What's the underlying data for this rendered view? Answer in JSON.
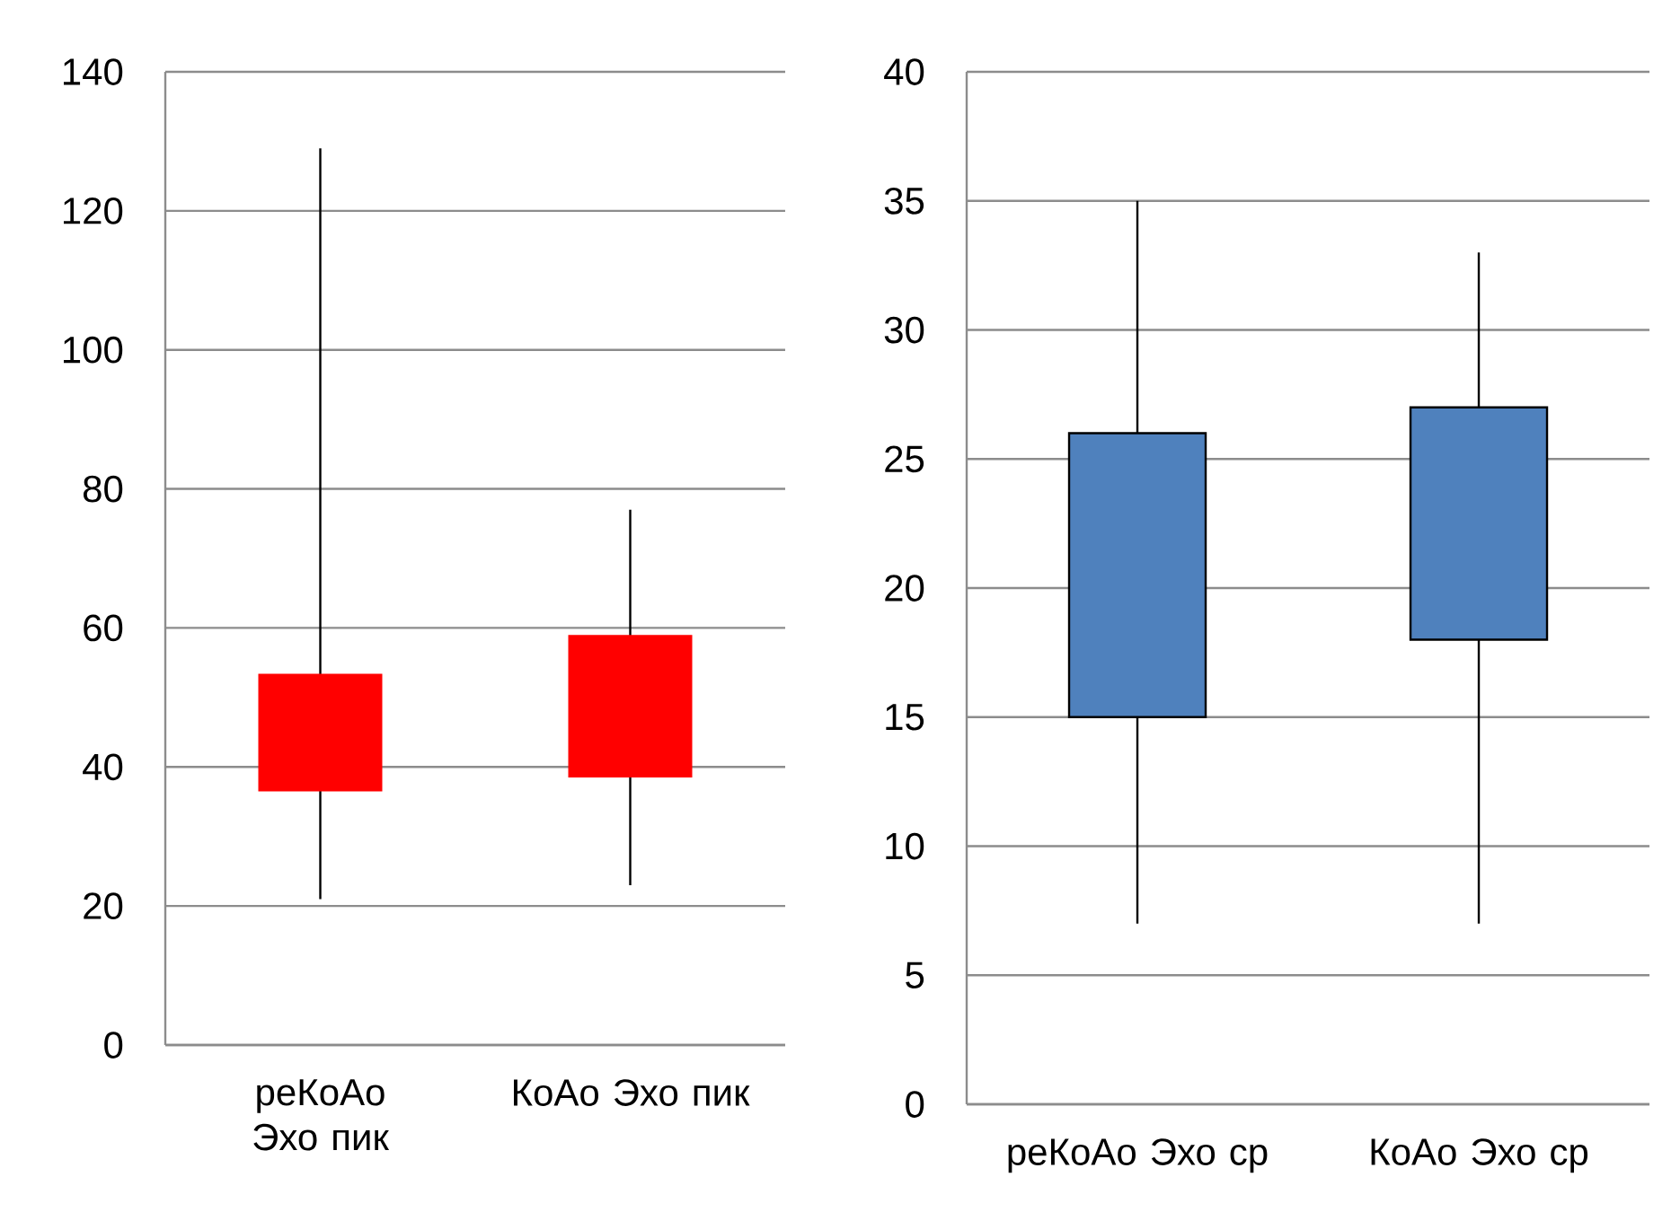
{
  "chart_data": [
    {
      "type": "candlestick",
      "categories": [
        "реКоАо Эхо пик",
        "КоАо Эхо пик"
      ],
      "ohlc": [
        [
          36.5,
          129,
          21,
          53.4
        ],
        [
          38.5,
          77,
          23,
          59
        ]
      ],
      "color": "#ff0000",
      "ylim": [
        0,
        140
      ],
      "yticks": [
        0,
        20,
        40,
        60,
        80,
        100,
        120,
        140
      ],
      "grid": "y"
    },
    {
      "type": "candlestick",
      "categories": [
        "реКоАо Эхо ср",
        "КоАо Эхо ср"
      ],
      "ohlc": [
        [
          15,
          35,
          7,
          26
        ],
        [
          18,
          33,
          7,
          27
        ]
      ],
      "color": "#4f81bd",
      "ylim": [
        0,
        40
      ],
      "yticks": [
        0,
        5,
        10,
        15,
        20,
        25,
        30,
        35,
        40
      ],
      "grid": "y"
    }
  ]
}
